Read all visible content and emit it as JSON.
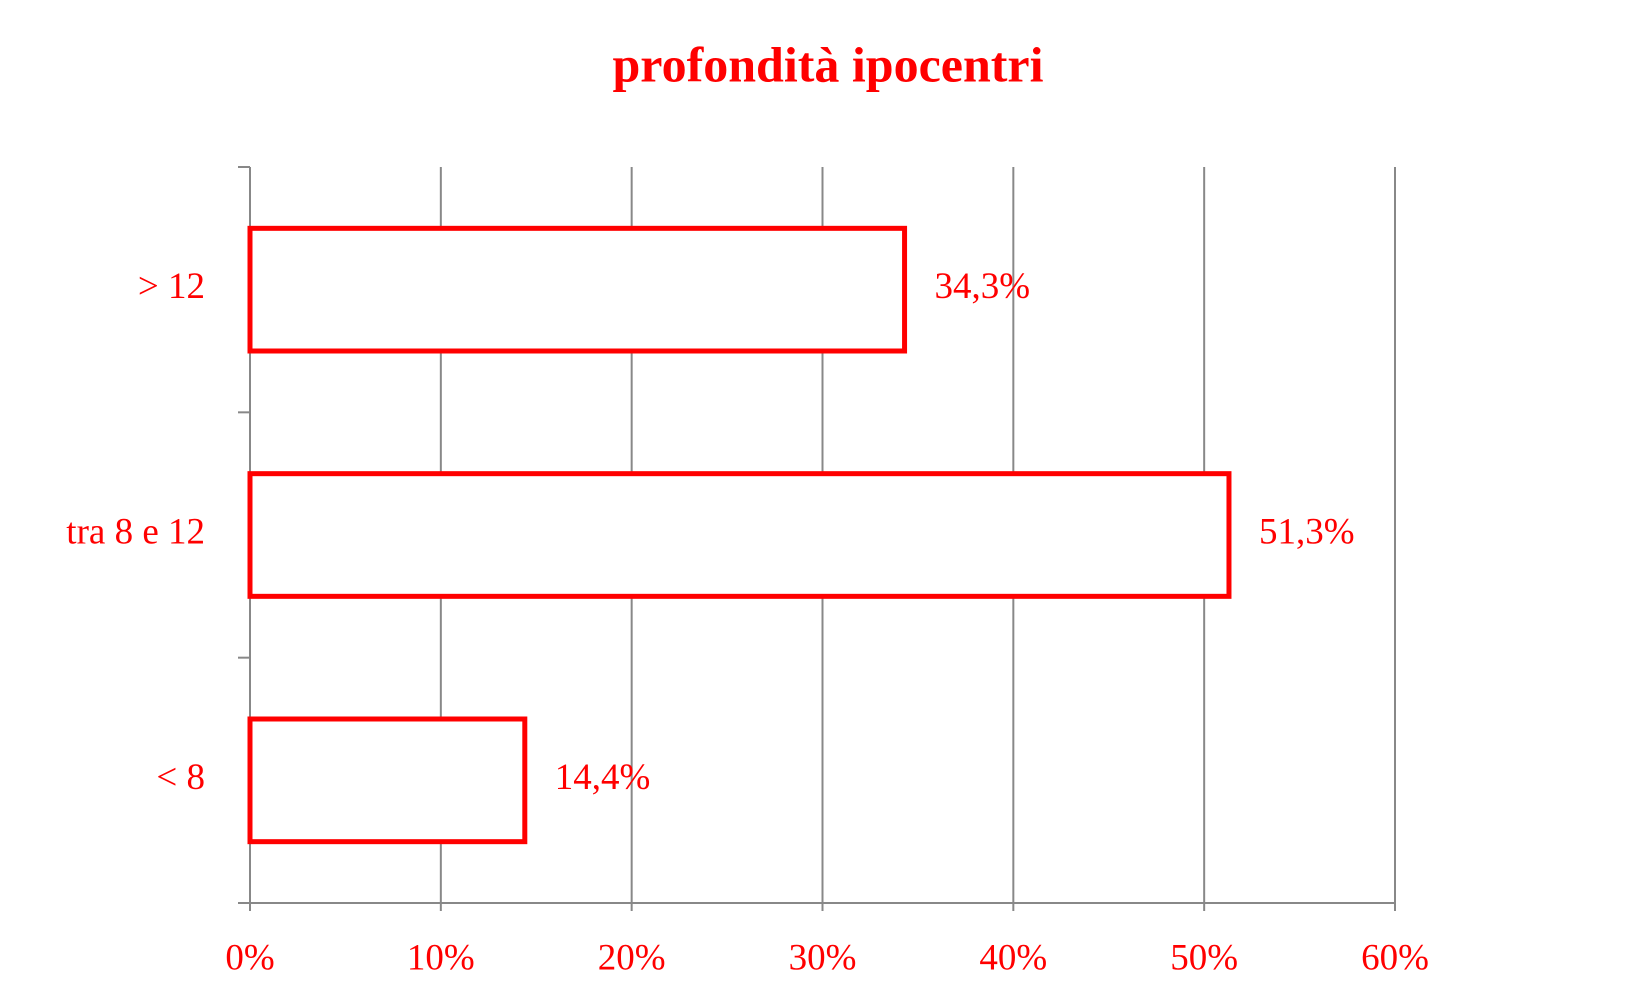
{
  "chart_data": {
    "type": "bar",
    "orientation": "horizontal",
    "title": "profondità ipocentri",
    "categories": [
      "> 12",
      "tra 8 e 12",
      "< 8"
    ],
    "values": [
      34.3,
      51.3,
      14.4
    ],
    "value_labels": [
      "34,3%",
      "51,3%",
      "14,4%"
    ],
    "color": "#ff0000",
    "xlim": [
      0,
      60
    ],
    "xticks": [
      {
        "value": 0,
        "label": "0%"
      },
      {
        "value": 10,
        "label": "10%"
      },
      {
        "value": 20,
        "label": "20%"
      },
      {
        "value": 30,
        "label": "30%"
      },
      {
        "value": 40,
        "label": "40%"
      },
      {
        "value": 50,
        "label": "50%"
      },
      {
        "value": 60,
        "label": "60%"
      }
    ],
    "grid": true
  }
}
